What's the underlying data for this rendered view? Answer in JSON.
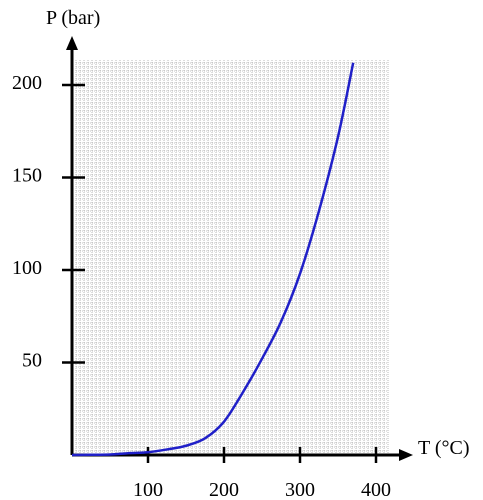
{
  "chart_data": {
    "type": "line",
    "title": "",
    "xlabel": "T (°C)",
    "ylabel": "P (bar)",
    "xlim": [
      0,
      400
    ],
    "ylim": [
      0,
      212
    ],
    "x_ticks": [
      100,
      200,
      300,
      400
    ],
    "y_ticks": [
      50,
      100,
      150,
      200
    ],
    "x_tick_labels": [
      "100",
      "200",
      "300",
      "400"
    ],
    "y_tick_labels": [
      "50",
      "100",
      "150",
      "200"
    ],
    "grid": true,
    "colors": {
      "curve": "#2020c8",
      "grid": "#8a8a8a",
      "axis": "#000000"
    },
    "series": [
      {
        "x": [
          0,
          25,
          50,
          75,
          100,
          125,
          150,
          175,
          200,
          225,
          250,
          275,
          300,
          325,
          350,
          370
        ],
        "y": [
          0,
          0.1,
          0.3,
          1.0,
          1.5,
          3.0,
          5.0,
          9.0,
          18.0,
          34.0,
          52.0,
          72.0,
          98.0,
          132.0,
          172.0,
          212.0
        ]
      }
    ]
  }
}
